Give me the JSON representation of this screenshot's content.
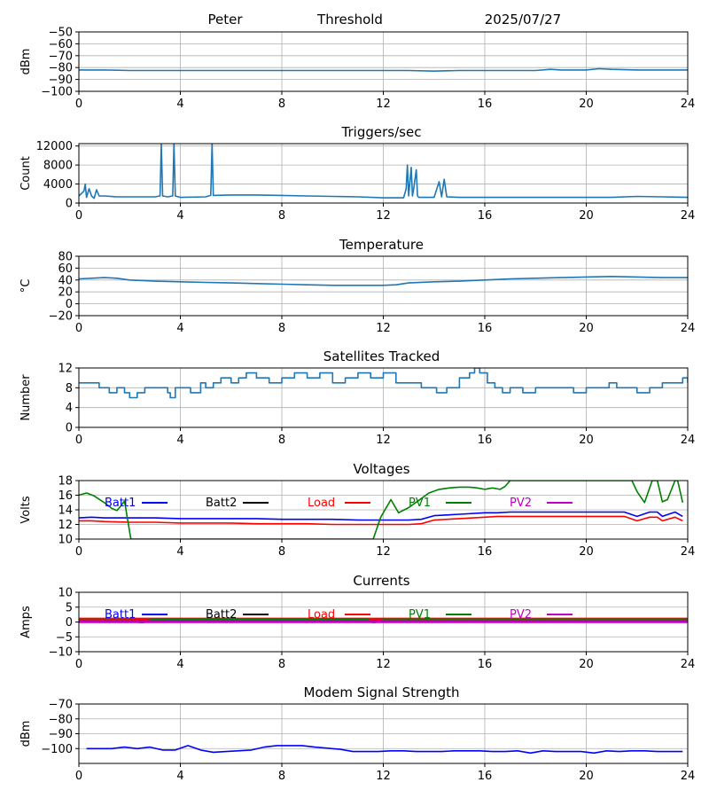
{
  "header": {
    "station": "Peter",
    "title": "Threshold",
    "date": "2025/07/27"
  },
  "chart_data": [
    {
      "id": "threshold",
      "type": "line",
      "title": "",
      "xlabel": "",
      "ylabel": "dBm",
      "xlim": [
        0,
        24
      ],
      "ylim": [
        -100,
        -50
      ],
      "xticks": [
        0,
        4,
        8,
        12,
        16,
        20,
        24
      ],
      "yticks": [
        -100,
        -90,
        -80,
        -70,
        -60,
        -50
      ],
      "grid": true,
      "series": [
        {
          "color": "#1f77b4",
          "x": [
            0,
            1,
            2,
            3,
            4,
            5,
            6,
            7,
            8,
            9,
            10,
            11,
            12,
            13,
            14,
            15,
            16,
            17,
            18,
            18.6,
            19,
            20,
            20.5,
            21,
            22,
            23,
            24
          ],
          "y": [
            -82,
            -82,
            -82.5,
            -82.5,
            -82.5,
            -82.5,
            -82.5,
            -82.5,
            -82.5,
            -82.5,
            -82.5,
            -82.5,
            -82.5,
            -82.5,
            -83,
            -82.5,
            -82.5,
            -82.5,
            -82.5,
            -81.5,
            -82,
            -82,
            -81,
            -81.5,
            -82,
            -82,
            -82
          ]
        }
      ]
    },
    {
      "id": "triggers",
      "type": "line",
      "title": "Triggers/sec",
      "xlabel": "",
      "ylabel": "Count",
      "xlim": [
        0,
        24
      ],
      "ylim": [
        0,
        12500
      ],
      "xticks": [
        0,
        4,
        8,
        12,
        16,
        20,
        24
      ],
      "yticks": [
        0,
        4000,
        8000,
        12000
      ],
      "grid": true,
      "series": [
        {
          "color": "#1f77b4",
          "x": [
            0,
            0.2,
            0.25,
            0.3,
            0.4,
            0.5,
            0.6,
            0.7,
            0.8,
            1,
            1.5,
            2,
            2.5,
            3,
            3.2,
            3.25,
            3.3,
            3.5,
            3.7,
            3.75,
            3.8,
            4,
            5,
            5.2,
            5.25,
            5.3,
            6,
            7,
            8,
            9,
            10,
            11,
            12,
            12.8,
            12.9,
            12.95,
            13,
            13.1,
            13.15,
            13.2,
            13.3,
            13.35,
            13.4,
            13.6,
            14,
            14.2,
            14.3,
            14.4,
            14.5,
            15,
            16,
            17,
            18,
            19,
            20,
            21,
            22,
            23,
            24
          ],
          "y": [
            1500,
            2500,
            4000,
            1200,
            3000,
            1500,
            1000,
            2800,
            1500,
            1500,
            1300,
            1300,
            1300,
            1300,
            1500,
            12500,
            1500,
            1300,
            1500,
            12500,
            1500,
            1200,
            1300,
            1600,
            12500,
            1600,
            1700,
            1700,
            1600,
            1500,
            1400,
            1300,
            1100,
            1100,
            3000,
            8000,
            1500,
            7500,
            1500,
            3000,
            7000,
            1500,
            1200,
            1200,
            1200,
            4500,
            1300,
            5000,
            1300,
            1200,
            1200,
            1200,
            1200,
            1200,
            1200,
            1200,
            1400,
            1300,
            1200
          ]
        }
      ]
    },
    {
      "id": "temperature",
      "type": "line",
      "title": "Temperature",
      "xlabel": "",
      "ylabel": "°C",
      "xlim": [
        0,
        24
      ],
      "ylim": [
        -20,
        80
      ],
      "xticks": [
        0,
        4,
        8,
        12,
        16,
        20,
        24
      ],
      "yticks": [
        -20,
        0,
        20,
        40,
        60,
        80
      ],
      "grid": true,
      "series": [
        {
          "color": "#1f77b4",
          "x": [
            0,
            0.5,
            1,
            1.5,
            2,
            3,
            4,
            5,
            6,
            7,
            8,
            9,
            10,
            11,
            12,
            12.5,
            13,
            14,
            15,
            16,
            17,
            18,
            19,
            20,
            21,
            22,
            23,
            24
          ],
          "y": [
            42,
            43,
            44,
            43,
            40,
            38,
            37,
            36,
            35,
            34,
            33,
            32,
            31,
            31,
            31,
            32,
            35,
            37,
            38,
            40,
            42,
            43,
            44,
            45,
            46,
            45,
            44,
            44
          ]
        }
      ]
    },
    {
      "id": "satellites",
      "type": "line",
      "title": "Satellites Tracked",
      "xlabel": "",
      "ylabel": "Number",
      "xlim": [
        0,
        24
      ],
      "ylim": [
        0,
        12
      ],
      "xticks": [
        0,
        4,
        8,
        12,
        16,
        20,
        24
      ],
      "yticks": [
        0,
        4,
        8,
        12
      ],
      "grid": true,
      "series": [
        {
          "color": "#1f77b4",
          "step": true,
          "x": [
            0,
            0.5,
            0.8,
            1.2,
            1.5,
            1.8,
            2,
            2.3,
            2.6,
            3,
            3.5,
            3.5,
            3.6,
            3.8,
            4,
            4.4,
            4.8,
            5,
            5.3,
            5.6,
            6,
            6.3,
            6.6,
            7,
            7.5,
            8,
            8.5,
            9,
            9.5,
            10,
            10.5,
            11,
            11.5,
            12,
            12.5,
            13,
            13.5,
            13.8,
            14.1,
            14.5,
            15,
            15.4,
            15.6,
            15.8,
            16.1,
            16.4,
            16.7,
            17,
            17.5,
            18,
            18.5,
            19,
            19.5,
            20,
            20.5,
            20.9,
            21.2,
            21.8,
            22,
            22.5,
            23,
            23.5,
            23.8,
            24
          ],
          "y": [
            9,
            9,
            8,
            7,
            8,
            7,
            6,
            7,
            8,
            8,
            8,
            7,
            6,
            8,
            8,
            7,
            9,
            8,
            9,
            10,
            9,
            10,
            11,
            10,
            9,
            10,
            11,
            10,
            11,
            9,
            10,
            11,
            10,
            11,
            9,
            9,
            8,
            8,
            7,
            8,
            10,
            11,
            12,
            11,
            9,
            8,
            7,
            8,
            7,
            8,
            8,
            8,
            7,
            8,
            8,
            9,
            8,
            8,
            7,
            8,
            9,
            9,
            10,
            9
          ]
        }
      ]
    },
    {
      "id": "voltages",
      "type": "line",
      "title": "Voltages",
      "xlabel": "",
      "ylabel": "Volts",
      "xlim": [
        0,
        24
      ],
      "ylim": [
        10,
        18
      ],
      "xticks": [
        0,
        4,
        8,
        12,
        16,
        20,
        24
      ],
      "yticks": [
        10,
        12,
        14,
        16,
        18
      ],
      "grid": true,
      "legend_position": "inside-top",
      "series": [
        {
          "name": "Batt1",
          "color": "#0000ff",
          "x": [
            0,
            0.5,
            1,
            2,
            3,
            4,
            5,
            6,
            7,
            8,
            9,
            10,
            11,
            12,
            13,
            13.5,
            14,
            15,
            16,
            16.5,
            17,
            18,
            19,
            20,
            21,
            21.5,
            22,
            22.5,
            22.8,
            23,
            23.5,
            23.8
          ],
          "y": [
            12.9,
            13,
            12.9,
            12.9,
            12.9,
            12.8,
            12.8,
            12.8,
            12.8,
            12.7,
            12.7,
            12.7,
            12.6,
            12.6,
            12.6,
            12.7,
            13.2,
            13.4,
            13.6,
            13.6,
            13.7,
            13.7,
            13.7,
            13.7,
            13.7,
            13.7,
            13.1,
            13.7,
            13.7,
            13.1,
            13.7,
            13.1
          ]
        },
        {
          "name": "Batt2",
          "color": "#000000",
          "x": [],
          "y": []
        },
        {
          "name": "Load",
          "color": "#ff0000",
          "x": [
            0,
            0.5,
            1,
            2,
            3,
            4,
            5,
            6,
            7,
            8,
            9,
            10,
            11,
            12,
            13,
            13.5,
            14,
            15,
            16,
            16.5,
            17,
            18,
            19,
            20,
            21,
            21.5,
            22,
            22.5,
            22.8,
            23,
            23.5,
            23.8
          ],
          "y": [
            12.5,
            12.5,
            12.4,
            12.3,
            12.3,
            12.2,
            12.2,
            12.2,
            12.1,
            12.1,
            12.1,
            12,
            12,
            12,
            12,
            12.1,
            12.6,
            12.8,
            13,
            13.1,
            13.1,
            13.1,
            13.1,
            13.1,
            13.1,
            13.1,
            12.5,
            13,
            13,
            12.5,
            13,
            12.5
          ]
        },
        {
          "name": "PV1",
          "color": "#008000",
          "x": [
            0,
            0.3,
            0.6,
            1,
            1.3,
            1.5,
            1.6,
            1.8,
            2,
            2.05,
            11.6,
            11.9,
            12.3,
            12.6,
            13,
            13.4,
            13.8,
            14.2,
            14.6,
            15,
            15.4,
            15.7,
            16,
            16.3,
            16.6,
            16.8,
            17,
            17.2,
            21.8,
            22,
            22.3,
            22.6,
            22.8,
            23,
            23.2,
            23.5,
            23.6,
            23.8
          ],
          "y": [
            16,
            16.3,
            15.9,
            15,
            14.2,
            13.9,
            14.3,
            15.2,
            11,
            10,
            10,
            13,
            15.4,
            13.6,
            14.3,
            15.3,
            16.3,
            16.8,
            17,
            17.1,
            17.1,
            17,
            16.8,
            17,
            16.8,
            17.2,
            18,
            18,
            18,
            16.5,
            15,
            18,
            18,
            15.1,
            15.4,
            18,
            18,
            15
          ]
        },
        {
          "name": "PV2",
          "color": "#bf00bf",
          "x": [],
          "y": []
        }
      ]
    },
    {
      "id": "currents",
      "type": "line",
      "title": "Currents",
      "xlabel": "",
      "ylabel": "Amps",
      "xlim": [
        0,
        24
      ],
      "ylim": [
        -10,
        10
      ],
      "xticks": [
        0,
        4,
        8,
        12,
        16,
        20,
        24
      ],
      "yticks": [
        -10,
        -5,
        0,
        5,
        10
      ],
      "grid": true,
      "legend_position": "inside-top",
      "series": [
        {
          "name": "Batt1",
          "color": "#0000ff",
          "x": [
            0,
            24
          ],
          "y": [
            0.3,
            0.3
          ]
        },
        {
          "name": "Batt2",
          "color": "#000000",
          "x": [
            0,
            24
          ],
          "y": [
            0.6,
            0.6
          ]
        },
        {
          "name": "Load",
          "color": "#ff0000",
          "x": [
            0,
            24
          ],
          "y": [
            1.0,
            1.0
          ]
        },
        {
          "name": "PV1",
          "color": "#008000",
          "x": [
            0,
            2,
            2.5,
            3,
            11.3,
            11.6,
            12,
            24
          ],
          "y": [
            0.4,
            0.4,
            0,
            0.8,
            0.8,
            0,
            0.5,
            0.5
          ]
        },
        {
          "name": "PV2",
          "color": "#bf00bf",
          "x": [
            0,
            24
          ],
          "y": [
            0.1,
            0.1
          ]
        }
      ]
    },
    {
      "id": "modem",
      "type": "line",
      "title": "Modem Signal Strength",
      "xlabel": "",
      "ylabel": "dBm",
      "xlim": [
        0,
        24
      ],
      "ylim": [
        -110,
        -70
      ],
      "xticks": [
        0,
        4,
        8,
        12,
        16,
        20,
        24
      ],
      "yticks": [
        -100,
        -90,
        -80,
        -70
      ],
      "grid": true,
      "series": [
        {
          "color": "#0000ff",
          "x": [
            0.3,
            1.3,
            1.8,
            2.3,
            2.8,
            3.3,
            3.8,
            4.3,
            4.8,
            5.3,
            5.8,
            6.8,
            7.3,
            7.8,
            8.8,
            9.3,
            10.3,
            10.8,
            11.8,
            12.3,
            12.8,
            13.3,
            14.3,
            14.8,
            15.8,
            16.3,
            16.8,
            17.3,
            17.8,
            18.3,
            18.8,
            19.3,
            19.8,
            20.3,
            20.8,
            21.3,
            21.8,
            22.3,
            22.8,
            23.3,
            23.8
          ],
          "y": [
            -100,
            -100,
            -99,
            -100,
            -99,
            -101,
            -101,
            -98,
            -101,
            -102.5,
            -102,
            -101,
            -99,
            -98,
            -98,
            -99,
            -100.5,
            -102,
            -102,
            -101.5,
            -101.5,
            -102,
            -102,
            -101.5,
            -101.5,
            -102,
            -102,
            -101.5,
            -103,
            -101.5,
            -102,
            -102,
            -102,
            -103,
            -101.5,
            -102,
            -101.5,
            -101.5,
            -102,
            -102,
            -102
          ]
        }
      ]
    }
  ]
}
